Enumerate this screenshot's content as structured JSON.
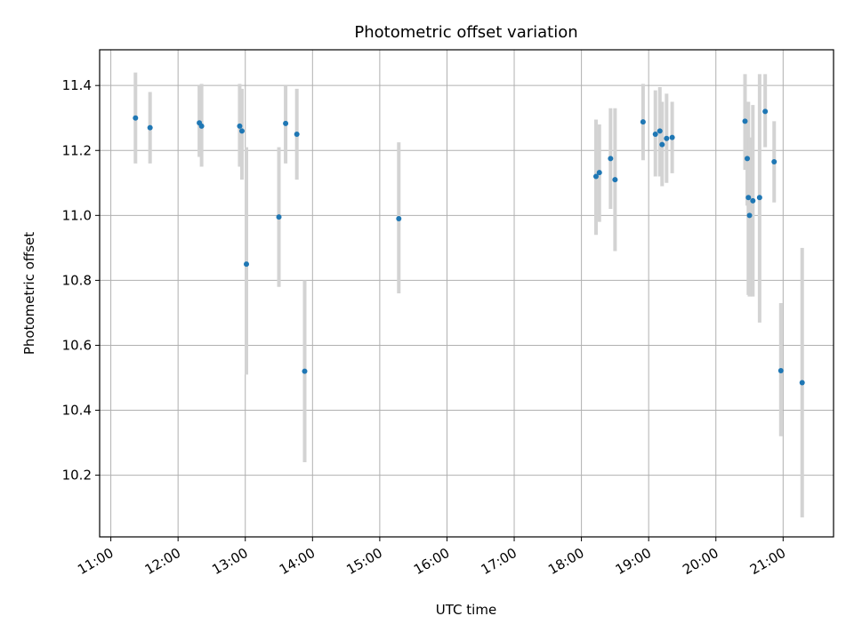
{
  "chart_data": {
    "type": "scatter",
    "title": "Photometric offset variation",
    "xlabel": "UTC time",
    "ylabel": "Photometric offset",
    "xlim": [
      "10:50",
      "21:45"
    ],
    "ylim": [
      10.01,
      11.51
    ],
    "grid": true,
    "x_ticks": [
      "11:00",
      "12:00",
      "13:00",
      "14:00",
      "15:00",
      "16:00",
      "17:00",
      "18:00",
      "19:00",
      "20:00",
      "21:00"
    ],
    "y_ticks": [
      10.2,
      10.4,
      10.6,
      10.8,
      11.0,
      11.2,
      11.4
    ],
    "colors": {
      "point": "#1f77b4",
      "errorbar": "#d3d3d3",
      "grid": "#b0b0b0"
    },
    "points": [
      {
        "x": "11:22",
        "y": 11.3,
        "ylow": 11.16,
        "yhigh": 11.44
      },
      {
        "x": "11:35",
        "y": 11.27,
        "ylow": 11.16,
        "yhigh": 11.38
      },
      {
        "x": "12:19",
        "y": 11.285,
        "ylow": 11.18,
        "yhigh": 11.4
      },
      {
        "x": "12:21",
        "y": 11.275,
        "ylow": 11.15,
        "yhigh": 11.405
      },
      {
        "x": "12:55",
        "y": 11.275,
        "ylow": 11.15,
        "yhigh": 11.405
      },
      {
        "x": "12:57",
        "y": 11.26,
        "ylow": 11.11,
        "yhigh": 11.39
      },
      {
        "x": "13:01",
        "y": 10.85,
        "ylow": 10.51,
        "yhigh": 11.21
      },
      {
        "x": "13:30",
        "y": 10.995,
        "ylow": 10.78,
        "yhigh": 11.21
      },
      {
        "x": "13:36",
        "y": 11.283,
        "ylow": 11.16,
        "yhigh": 11.4
      },
      {
        "x": "13:46",
        "y": 11.25,
        "ylow": 11.11,
        "yhigh": 11.39
      },
      {
        "x": "13:53",
        "y": 10.52,
        "ylow": 10.24,
        "yhigh": 10.8
      },
      {
        "x": "15:17",
        "y": 10.99,
        "ylow": 10.76,
        "yhigh": 11.225
      },
      {
        "x": "18:13",
        "y": 11.12,
        "ylow": 10.94,
        "yhigh": 11.295
      },
      {
        "x": "18:16",
        "y": 11.132,
        "ylow": 10.98,
        "yhigh": 11.28
      },
      {
        "x": "18:26",
        "y": 11.175,
        "ylow": 11.02,
        "yhigh": 11.33
      },
      {
        "x": "18:30",
        "y": 11.11,
        "ylow": 10.89,
        "yhigh": 11.33
      },
      {
        "x": "18:55",
        "y": 11.288,
        "ylow": 11.17,
        "yhigh": 11.405
      },
      {
        "x": "19:06",
        "y": 11.25,
        "ylow": 11.12,
        "yhigh": 11.385
      },
      {
        "x": "19:10",
        "y": 11.26,
        "ylow": 11.12,
        "yhigh": 11.395
      },
      {
        "x": "19:12",
        "y": 11.218,
        "ylow": 11.09,
        "yhigh": 11.35
      },
      {
        "x": "19:16",
        "y": 11.237,
        "ylow": 11.1,
        "yhigh": 11.375
      },
      {
        "x": "19:21",
        "y": 11.24,
        "ylow": 11.13,
        "yhigh": 11.35
      },
      {
        "x": "20:26",
        "y": 11.29,
        "ylow": 11.14,
        "yhigh": 11.435
      },
      {
        "x": "20:28",
        "y": 11.175,
        "ylow": 11.03,
        "yhigh": 11.32
      },
      {
        "x": "20:29",
        "y": 11.055,
        "ylow": 10.755,
        "yhigh": 11.35
      },
      {
        "x": "20:30",
        "y": 11.0,
        "ylow": 10.75,
        "yhigh": 11.24
      },
      {
        "x": "20:33",
        "y": 11.045,
        "ylow": 10.75,
        "yhigh": 11.34
      },
      {
        "x": "20:39",
        "y": 11.055,
        "ylow": 10.67,
        "yhigh": 11.435
      },
      {
        "x": "20:44",
        "y": 11.32,
        "ylow": 11.21,
        "yhigh": 11.435
      },
      {
        "x": "20:52",
        "y": 11.165,
        "ylow": 11.04,
        "yhigh": 11.29
      },
      {
        "x": "20:58",
        "y": 10.522,
        "ylow": 10.32,
        "yhigh": 10.73
      },
      {
        "x": "21:17",
        "y": 10.485,
        "ylow": 10.07,
        "yhigh": 10.9
      }
    ]
  }
}
